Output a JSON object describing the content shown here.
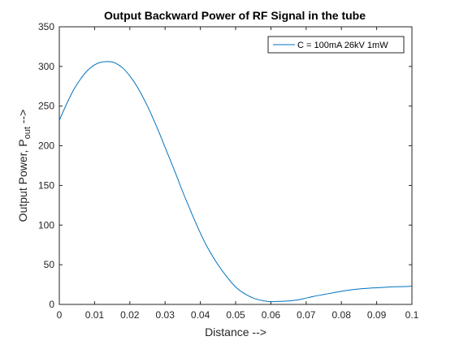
{
  "chart_data": {
    "type": "line",
    "title": "Output Backward Power of RF Signal in the tube",
    "xlabel": "Distance -->",
    "ylabel_main": "Output Power, P",
    "ylabel_sub": "out",
    "ylabel_arrow": " -->",
    "xlim": [
      0,
      0.1
    ],
    "ylim": [
      0,
      350
    ],
    "xticks": [
      0,
      0.01,
      0.02,
      0.03,
      0.04,
      0.05,
      0.06,
      0.07,
      0.08,
      0.09,
      0.1
    ],
    "xtick_labels": [
      "0",
      "0.01",
      "0.02",
      "0.03",
      "0.04",
      "0.05",
      "0.06",
      "0.07",
      "0.08",
      "0.09",
      "0.1"
    ],
    "yticks": [
      0,
      50,
      100,
      150,
      200,
      250,
      300,
      350
    ],
    "ytick_labels": [
      "0",
      "50",
      "100",
      "150",
      "200",
      "250",
      "300",
      "350"
    ],
    "grid": false,
    "legend_position": "top-right",
    "series": [
      {
        "name": "C = 100mA 26kV 1mW",
        "color": "#0072BD",
        "x": [
          0,
          0.002,
          0.004,
          0.006,
          0.008,
          0.01,
          0.012,
          0.0145,
          0.016,
          0.018,
          0.02,
          0.022,
          0.025,
          0.028,
          0.03,
          0.033,
          0.035,
          0.038,
          0.04,
          0.042,
          0.045,
          0.048,
          0.05,
          0.052,
          0.055,
          0.058,
          0.06,
          0.062,
          0.065,
          0.068,
          0.07,
          0.072,
          0.075,
          0.078,
          0.08,
          0.083,
          0.085,
          0.088,
          0.09,
          0.093,
          0.095,
          0.098,
          0.1
        ],
        "y": [
          232,
          252,
          270,
          284,
          295,
          302,
          305.5,
          306,
          304,
          298,
          288,
          275,
          250,
          220,
          198,
          165,
          142,
          110,
          90,
          72,
          50,
          32,
          22,
          15,
          8,
          4.5,
          3.5,
          3.8,
          4.3,
          6,
          8,
          10,
          12.5,
          15,
          16.5,
          18.5,
          19.5,
          20.5,
          21,
          21.8,
          22.2,
          22.5,
          23
        ]
      }
    ]
  }
}
